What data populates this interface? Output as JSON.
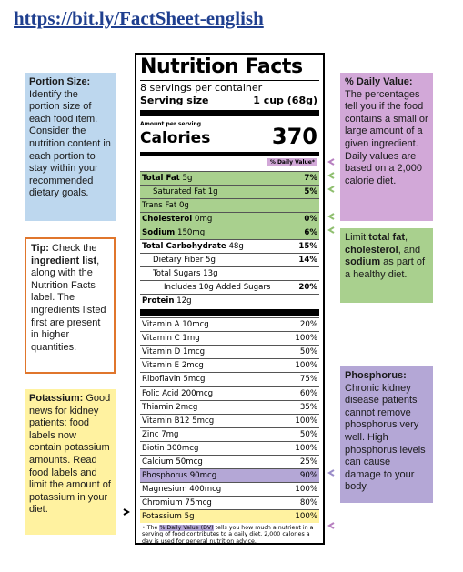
{
  "url": "https://bit.ly/FactSheet-english",
  "label": {
    "title": "Nutrition Facts",
    "servings": "8 servings per container",
    "serving_size_label": "Serving size",
    "serving_size": "1 cup (68g)",
    "amount_per_serving": "Amount per serving",
    "calories_label": "Calories",
    "calories": "370",
    "daily_value_header": "% Daily Value*",
    "nutrients": [
      {
        "name": "Total Fat",
        "amount": "5g",
        "dv": "7%",
        "bold": true,
        "indent": 0,
        "highlight": "#a9d08e"
      },
      {
        "name": "Saturated Fat",
        "amount": "1g",
        "dv": "5%",
        "bold": false,
        "indent": 1,
        "highlight": "#a9d08e"
      },
      {
        "name": "Trans Fat",
        "amount": "0g",
        "bold": false,
        "indent": 0,
        "highlight": "#a9d08e"
      },
      {
        "name": "Cholesterol",
        "amount": "0mg",
        "dv": "0%",
        "bold": true,
        "indent": 0,
        "highlight": "#a9d08e"
      },
      {
        "name": "Sodium",
        "amount": "150mg",
        "dv": "6%",
        "bold": true,
        "indent": 0,
        "highlight": "#a9d08e"
      },
      {
        "name": "Total Carbohydrate",
        "amount": "48g",
        "dv": "15%",
        "bold": true,
        "indent": 0
      },
      {
        "name": "Dietary Fiber",
        "amount": "5g",
        "dv": "14%",
        "bold": false,
        "indent": 1
      },
      {
        "name": "Total Sugars",
        "amount": "13g",
        "bold": false,
        "indent": 1
      },
      {
        "name": "Includes 10g Added Sugars",
        "dv": "20%",
        "bold": false,
        "indent": 2
      },
      {
        "name": "Protein",
        "amount": "12g",
        "bold": true,
        "indent": 0
      }
    ],
    "vitamins": [
      {
        "name": "Vitamin A",
        "amount": "10mcg",
        "dv": "20%"
      },
      {
        "name": "Vitamin C",
        "amount": "1mg",
        "dv": "100%"
      },
      {
        "name": "Vitamin D",
        "amount": "1mcg",
        "dv": "50%"
      },
      {
        "name": "Vitamin E",
        "amount": "2mcg",
        "dv": "100%"
      },
      {
        "name": "Riboflavin",
        "amount": "5mcg",
        "dv": "75%"
      },
      {
        "name": "Folic Acid",
        "amount": "200mcg",
        "dv": "60%"
      },
      {
        "name": "Thiamin",
        "amount": "2mcg",
        "dv": "35%"
      },
      {
        "name": "Vitamin B12",
        "amount": "5mcg",
        "dv": "100%"
      },
      {
        "name": "Zinc",
        "amount": "7mg",
        "dv": "50%"
      },
      {
        "name": "Biotin",
        "amount": "300mcg",
        "dv": "100%"
      },
      {
        "name": "Calcium",
        "amount": "50mcg",
        "dv": "25%"
      },
      {
        "name": "Phosphorus",
        "amount": "90mcg",
        "dv": "90%",
        "highlight": "#b4a7d6"
      },
      {
        "name": "Magnesium",
        "amount": "400mcg",
        "dv": "100%"
      },
      {
        "name": "Chromium",
        "amount": "75mcg",
        "dv": "80%"
      },
      {
        "name": "Potassium",
        "amount": "5g",
        "dv": "100%",
        "highlight": "#fff2a0"
      }
    ],
    "footnote": [
      {
        "text": "• The "
      },
      {
        "text": "% Daily Value (DV)",
        "highlight": "#b4a7d6"
      },
      {
        "text": " tells you how much a nutrient in a serving of food contributes to a daily diet. 2,000 calories a day is used for general nutrition advice."
      }
    ]
  },
  "notes": {
    "portion": [
      {
        "text": "Portion Size:",
        "bold": true
      },
      {
        "text": " Identify the portion size of each food item. Consider the nutrition content in each portion to stay within your recommended dietary goals."
      }
    ],
    "tip": [
      {
        "text": "Tip:",
        "bold": true
      },
      {
        "text": " Check the "
      },
      {
        "text": "ingredient list",
        "bold": true
      },
      {
        "text": ", along with the Nutrition Facts label. The ingredients listed first are present in higher quantities."
      }
    ],
    "potassium": [
      {
        "text": "Potassium:",
        "bold": true
      },
      {
        "text": " Good news for kidney patients: food labels now contain potassium amounts. Read food labels and limit the amount of potassium in your diet."
      }
    ],
    "dv": [
      {
        "text": "% Daily Value:",
        "bold": true
      },
      {
        "text": " The percentages tell you if the food contains a small or large amount of a given ingredient. Daily values are based on a 2,000 calorie diet."
      }
    ],
    "limit": [
      {
        "text": "Limit "
      },
      {
        "text": "total fat",
        "bold": true
      },
      {
        "text": ", "
      },
      {
        "text": "cholesterol",
        "bold": true
      },
      {
        "text": ", and "
      },
      {
        "text": "sodium",
        "bold": true
      },
      {
        "text": " as part of a healthy diet."
      }
    ],
    "phos": [
      {
        "text": "Phosphorus:",
        "bold": true
      },
      {
        "text": " Chronic kidney disease patients cannot remove phosphorus very well. High phosphorus levels can cause damage to your body."
      }
    ]
  }
}
